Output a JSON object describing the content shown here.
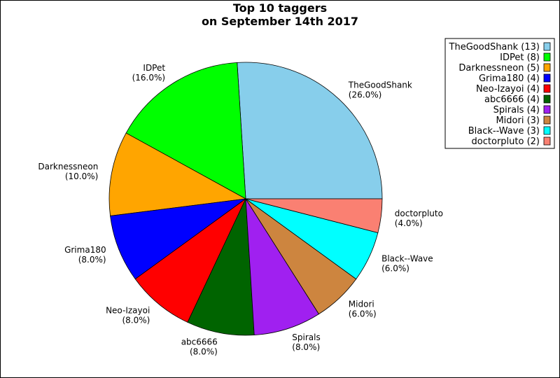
{
  "chart_data": {
    "type": "pie",
    "title": "Top 10 taggers",
    "subtitle": "on September 14th 2017",
    "start_angle_deg": 0,
    "direction": "counterclockwise",
    "legend_position": "top-right",
    "slices": [
      {
        "name": "TheGoodShank",
        "count": 13,
        "percent": 26.0,
        "color": "#87ceeb",
        "label": "TheGoodShank",
        "pct_label": "(26.0%)",
        "legend": "TheGoodShank (13)"
      },
      {
        "name": "IDPet",
        "count": 8,
        "percent": 16.0,
        "color": "#00ff00",
        "label": "IDPet",
        "pct_label": "(16.0%)",
        "legend": "IDPet (8)"
      },
      {
        "name": "Darknessneon",
        "count": 5,
        "percent": 10.0,
        "color": "#ffa500",
        "label": "Darknessneon",
        "pct_label": "(10.0%)",
        "legend": "Darknessneon (5)"
      },
      {
        "name": "Grima180",
        "count": 4,
        "percent": 8.0,
        "color": "#0000ff",
        "label": "Grima180",
        "pct_label": "(8.0%)",
        "legend": "Grima180 (4)"
      },
      {
        "name": "Neo-Izayoi",
        "count": 4,
        "percent": 8.0,
        "color": "#ff0000",
        "label": "Neo-Izayoi",
        "pct_label": "(8.0%)",
        "legend": "Neo-Izayoi (4)"
      },
      {
        "name": "abc6666",
        "count": 4,
        "percent": 8.0,
        "color": "#006400",
        "label": "abc6666",
        "pct_label": "(8.0%)",
        "legend": "abc6666 (4)"
      },
      {
        "name": "Spirals",
        "count": 4,
        "percent": 8.0,
        "color": "#a020f0",
        "label": "Spirals",
        "pct_label": "(8.0%)",
        "legend": "Spirals (4)"
      },
      {
        "name": "Midori",
        "count": 3,
        "percent": 6.0,
        "color": "#cd853f",
        "label": "Midori",
        "pct_label": "(6.0%)",
        "legend": "Midori (3)"
      },
      {
        "name": "Black--Wave",
        "count": 3,
        "percent": 6.0,
        "color": "#00ffff",
        "label": "Black--Wave",
        "pct_label": "(6.0%)",
        "legend": "Black--Wave (3)"
      },
      {
        "name": "doctorpluto",
        "count": 2,
        "percent": 4.0,
        "color": "#fa8072",
        "label": "doctorpluto",
        "pct_label": "(4.0%)",
        "legend": "doctorpluto (2)"
      }
    ]
  }
}
